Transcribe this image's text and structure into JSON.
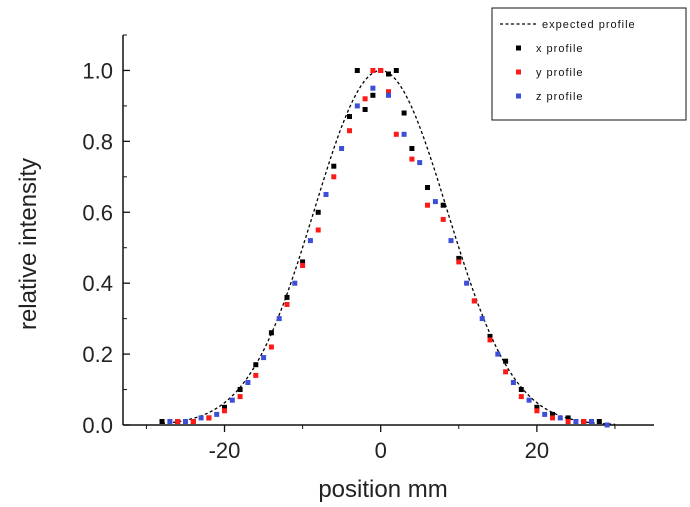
{
  "chart_data": {
    "type": "scatter",
    "title": "",
    "xlabel": "position mm",
    "ylabel": "relative intensity",
    "xlim": [
      -33,
      35
    ],
    "ylim": [
      0.0,
      1.1
    ],
    "x_ticks": [
      -20,
      0,
      20
    ],
    "x_tick_labels": [
      "-20",
      "0",
      "20"
    ],
    "y_ticks": [
      0.0,
      0.2,
      0.4,
      0.6,
      0.8,
      1.0
    ],
    "y_tick_labels": [
      "0.0",
      "0.2",
      "0.4",
      "0.6",
      "0.8",
      "1.0"
    ],
    "grid": false,
    "legend_position": "top-right",
    "curve": {
      "name": "expected profile",
      "style": "dashed",
      "color": "#000000",
      "shape": "gaussian",
      "center": 0,
      "sigma": 8.5,
      "amplitude": 1.0
    },
    "series": [
      {
        "name": "x profile",
        "color": "#000000",
        "x": [
          -28,
          -26,
          -24,
          -22,
          -20,
          -18,
          -16,
          -14,
          -12,
          -10,
          -8,
          -6,
          -4,
          -3,
          -2,
          -1,
          0,
          1,
          2,
          3,
          4,
          6,
          8,
          10,
          12,
          14,
          16,
          18,
          20,
          22,
          24,
          26,
          28
        ],
        "y": [
          0.01,
          0.01,
          0.01,
          0.02,
          0.05,
          0.1,
          0.17,
          0.26,
          0.36,
          0.46,
          0.6,
          0.73,
          0.87,
          1.0,
          0.89,
          0.93,
          1.0,
          0.99,
          1.0,
          0.88,
          0.78,
          0.67,
          0.62,
          0.47,
          0.35,
          0.25,
          0.18,
          0.1,
          0.05,
          0.03,
          0.02,
          0.01,
          0.01
        ]
      },
      {
        "name": "y profile",
        "color": "#ff1a1a",
        "x": [
          -26,
          -24,
          -22,
          -20,
          -18,
          -16,
          -14,
          -12,
          -10,
          -8,
          -6,
          -4,
          -2,
          -1,
          0,
          1,
          2,
          4,
          6,
          8,
          10,
          12,
          14,
          16,
          18,
          20,
          22,
          24,
          26
        ],
        "y": [
          0.01,
          0.01,
          0.02,
          0.04,
          0.08,
          0.14,
          0.22,
          0.34,
          0.45,
          0.55,
          0.7,
          0.83,
          0.92,
          1.0,
          1.0,
          0.94,
          0.82,
          0.75,
          0.62,
          0.58,
          0.46,
          0.35,
          0.24,
          0.15,
          0.08,
          0.04,
          0.02,
          0.01,
          0.01
        ]
      },
      {
        "name": "z profile",
        "color": "#3d4fd6",
        "x": [
          -27,
          -25,
          -23,
          -21,
          -19,
          -17,
          -15,
          -13,
          -11,
          -9,
          -7,
          -5,
          -3,
          -1,
          1,
          3,
          5,
          7,
          9,
          11,
          13,
          15,
          17,
          19,
          21,
          23,
          25,
          27,
          29
        ],
        "y": [
          0.01,
          0.01,
          0.02,
          0.03,
          0.07,
          0.12,
          0.19,
          0.3,
          0.4,
          0.52,
          0.65,
          0.78,
          0.9,
          0.95,
          0.93,
          0.82,
          0.74,
          0.63,
          0.52,
          0.4,
          0.3,
          0.2,
          0.12,
          0.07,
          0.03,
          0.02,
          0.01,
          0.01,
          0.0
        ]
      }
    ]
  }
}
